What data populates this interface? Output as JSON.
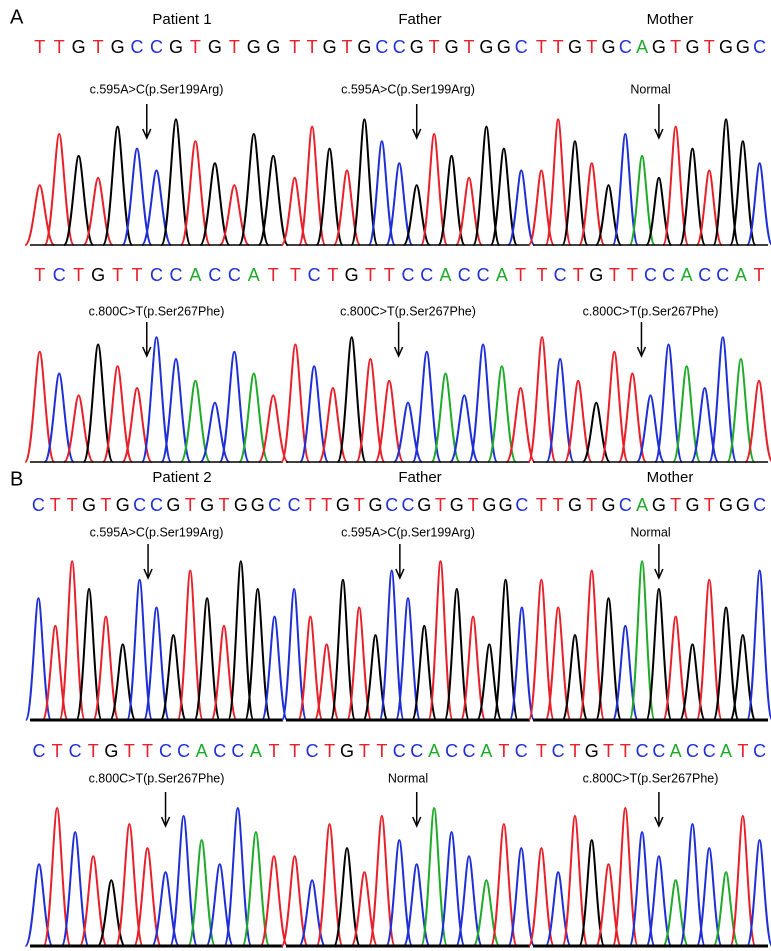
{
  "panels": [
    {
      "label": "A",
      "titles": [
        "Patient 1",
        "Father",
        "Mother"
      ],
      "rows": [
        [
          {
            "sequence": "TTGTGCCGTGTGG",
            "annotation": "c.595A>C(p.Ser199Arg)"
          },
          {
            "sequence": "TTGTGCCGTGTGGC",
            "annotation": "c.595A>C(p.Ser199Arg)"
          },
          {
            "sequence": "TTGTGCAGTGTGGC",
            "annotation": "Normal"
          }
        ],
        [
          {
            "sequence": "TCTGTTCCACCAT",
            "annotation": "c.800C>T(p.Ser267Phe)"
          },
          {
            "sequence": "TCTGTTCCACCAT",
            "annotation": "c.800C>T(p.Ser267Phe)"
          },
          {
            "sequence": "TCTGTTCCACCAT",
            "annotation": "c.800C>T(p.Ser267Phe)"
          }
        ]
      ]
    },
    {
      "label": "B",
      "titles": [
        "Patient 2",
        "Father",
        "Mother"
      ],
      "rows": [
        [
          {
            "sequence": "CTTGTGCCGTGTGGC",
            "annotation": "c.595A>C(p.Ser199Arg)"
          },
          {
            "sequence": "CTTGTGCCGTGTGGC",
            "annotation": "c.595A>C(p.Ser199Arg)"
          },
          {
            "sequence": "TTGTGCAGTGTGGC",
            "annotation": "Normal"
          }
        ],
        [
          {
            "sequence": "CTCTGTTCCACCAT",
            "annotation": "c.800C>T(p.Ser267Phe)"
          },
          {
            "sequence": "TCTGTTCCACCATC",
            "annotation": "Normal"
          },
          {
            "sequence": "TCTGTTCCACCATC",
            "annotation": "c.800C>T(p.Ser267Phe)"
          }
        ]
      ]
    }
  ]
}
